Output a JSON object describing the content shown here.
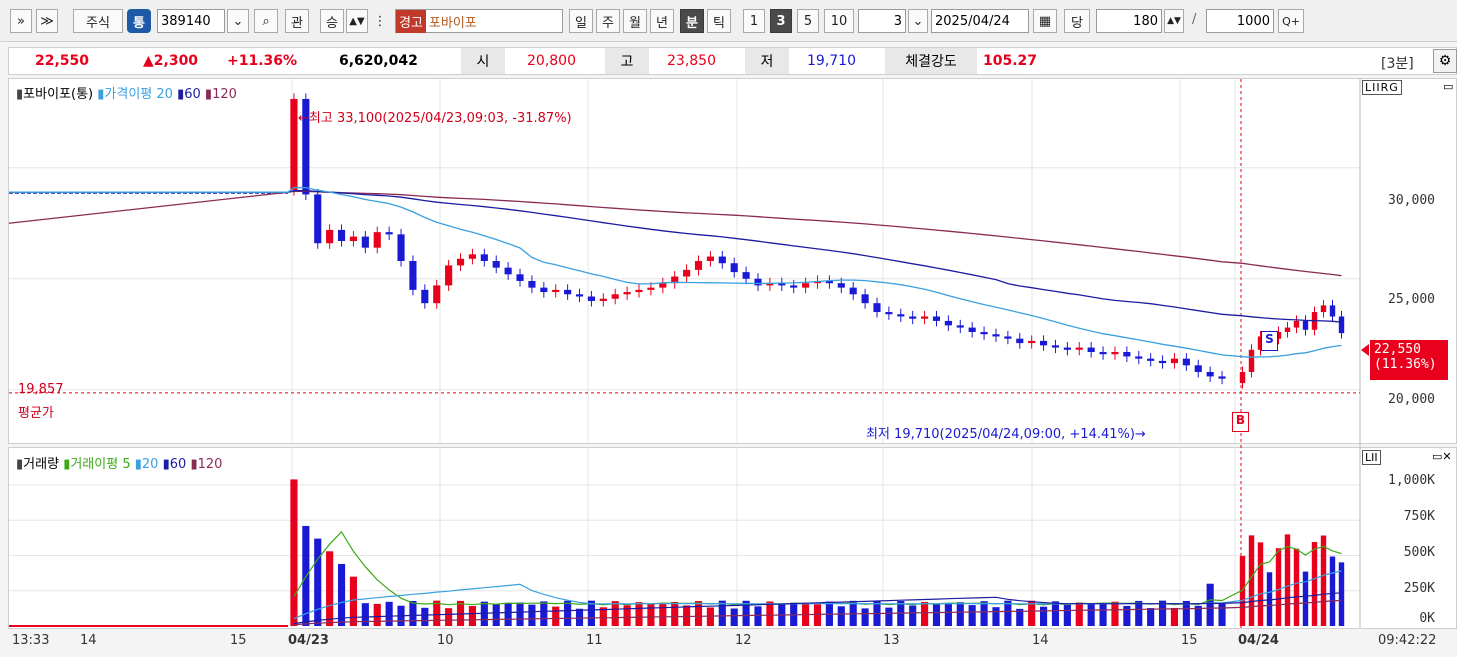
{
  "toolbar": {
    "nav_left": "»",
    "nav_down": "≫",
    "market": "주식",
    "market_badge": "통",
    "code": "389140",
    "chk": "관",
    "sort": "승",
    "warn": "경고",
    "stock_name": "포바이포",
    "periods": [
      "일",
      "주",
      "월",
      "년",
      "분",
      "틱"
    ],
    "active_period": "분",
    "intervals": [
      "1",
      "3",
      "5",
      "10"
    ],
    "active_interval": "3",
    "interval_value": "3",
    "date": "2025/04/24",
    "when": "당",
    "count": "180",
    "slash": "/",
    "max": "1000",
    "zoom_icon": "Q+"
  },
  "pricebar": {
    "price": "22,550",
    "change": "▲2,300",
    "rate": "+11.36%",
    "volume": "6,620,042",
    "open_label": "시",
    "open": "20,800",
    "high_label": "고",
    "high": "23,850",
    "low_label": "저",
    "low": "19,710",
    "strength_label": "체결강도",
    "strength": "105.27",
    "period_label": "[3분]"
  },
  "price_panel": {
    "legend_name": "포바이포(통)",
    "legend_ma_label": "가격이평",
    "legend_ma": [
      "20",
      "60",
      "120"
    ],
    "controls": "LIIRG",
    "high_note": "←최고 33,100(2025/04/23,09:03, -31.87%)",
    "low_note": "최저 19,710(2025/04/24,09:00, +14.41%)→",
    "avg_value": "19,857",
    "avg_label": "평균가",
    "current_price": "22,550",
    "current_rate": "(11.36%)",
    "s_marker": "S",
    "b_marker": "B",
    "yticks": [
      "30,000",
      "25,000",
      "20,000"
    ]
  },
  "volume_panel": {
    "legend_name": "거래량",
    "legend_ma_label": "거래이평",
    "legend_ma": [
      "5",
      "20",
      "60",
      "120"
    ],
    "controls": "LII",
    "yticks": [
      "1,000K",
      "750K",
      "500K",
      "250K",
      "0K"
    ]
  },
  "xaxis": {
    "labels": [
      "13:33",
      "14",
      "15",
      "04/23",
      "10",
      "11",
      "12",
      "13",
      "14",
      "15",
      "04/24"
    ],
    "time": "09:42:22"
  },
  "colors": {
    "up": "#e8001c",
    "down": "#1a1ad4",
    "ma20": "#3aa0e0",
    "ma60": "#1c1ca0",
    "ma120": "#8a2a55",
    "vma5": "#3caa18"
  },
  "chart_data": {
    "type": "candlestick",
    "title": "포바이포(통)",
    "ylim": [
      17600,
      34000
    ],
    "candles_first_day_close": [
      33100,
      28800,
      26600,
      27200,
      26700,
      26900,
      26400,
      27100,
      27000,
      25800,
      24500,
      23900,
      24700,
      25600,
      25900,
      26100,
      25800,
      25500,
      25200,
      24900,
      24600,
      24400,
      24500,
      24300,
      24200,
      24000,
      24100,
      24300,
      24400,
      24500,
      24600,
      24800,
      25100,
      25400,
      25800,
      26000,
      25700,
      25300,
      25000,
      24700,
      24800,
      24700,
      24600,
      24800,
      24900,
      24800,
      24600,
      24300,
      23900,
      23500,
      23400,
      23300,
      23200,
      23300,
      23100,
      22900,
      22800,
      22600,
      22500,
      22400,
      22300,
      22100,
      22200,
      22000,
      21900,
      21800,
      21900,
      21700,
      21600,
      21700,
      21500,
      21400,
      21300,
      21200,
      21400,
      21100,
      20800,
      20600,
      20500
    ],
    "candles_second_day_close": [
      20800,
      21800,
      22400,
      22300,
      22600,
      22800,
      23100,
      22700,
      23500,
      23800,
      23300,
      22550
    ],
    "volume_yticks": [
      "1,000K",
      "750K",
      "500K",
      "250K",
      "0K"
    ]
  }
}
